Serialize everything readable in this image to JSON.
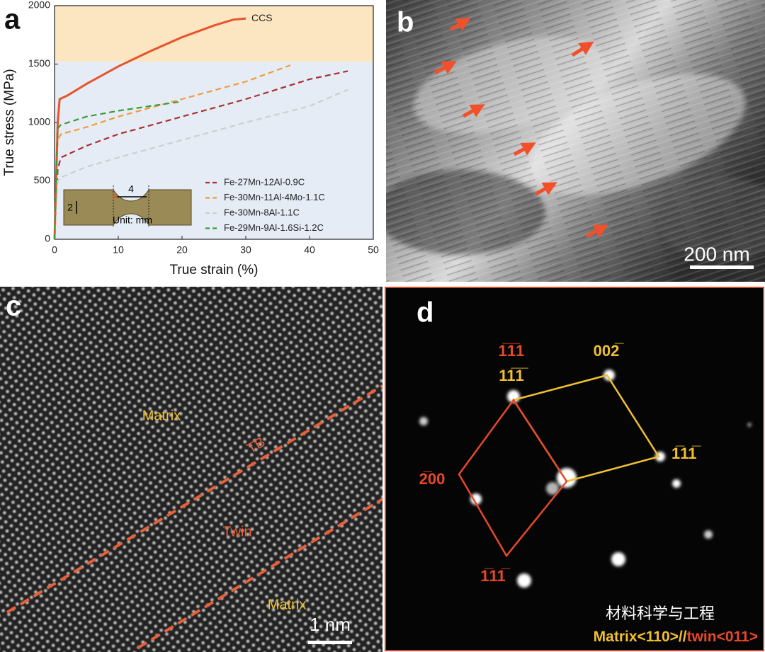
{
  "chart_data": {
    "type": "line",
    "xlabel": "True strain (%)",
    "ylabel": "True stress (MPa)",
    "xlim": [
      0,
      50
    ],
    "ylim": [
      0,
      2000
    ],
    "xticks": [
      0,
      10,
      20,
      30,
      40,
      50
    ],
    "yticks": [
      0,
      500,
      1000,
      1500,
      2000
    ],
    "bands": [
      {
        "from": 1520,
        "to": 2000,
        "color": "#fce6c2"
      },
      {
        "from": 0,
        "to": 1520,
        "color": "#e5ecf6"
      }
    ],
    "legend": "lower right",
    "series": [
      {
        "name": "CCS",
        "color": "#e8532a",
        "style": "solid",
        "x": [
          0,
          0.5,
          0.8,
          2,
          5,
          10,
          15,
          20,
          25,
          28,
          30
        ],
        "values": [
          0,
          1000,
          1200,
          1230,
          1330,
          1480,
          1610,
          1730,
          1830,
          1880,
          1890
        ]
      },
      {
        "name": "Fe-27Mn-12Al-0.9C",
        "color": "#a8302a",
        "style": "dashed",
        "x": [
          0,
          0.5,
          1,
          5,
          10,
          20,
          30,
          40,
          46
        ],
        "values": [
          0,
          600,
          700,
          800,
          900,
          1050,
          1200,
          1370,
          1440
        ]
      },
      {
        "name": "Fe-30Mn-11Al-4Mo-1.1C",
        "color": "#f39a3c",
        "style": "dashed",
        "x": [
          0,
          0.5,
          1,
          5,
          10,
          20,
          30,
          37
        ],
        "values": [
          0,
          850,
          900,
          960,
          1050,
          1200,
          1350,
          1490
        ]
      },
      {
        "name": "Fe-30Mn-8Al-1.1C",
        "color": "#cfcfcf",
        "style": "dashed",
        "x": [
          0,
          0.5,
          1,
          5,
          10,
          20,
          30,
          40,
          46
        ],
        "values": [
          0,
          500,
          530,
          620,
          700,
          850,
          1000,
          1140,
          1280
        ]
      },
      {
        "name": "Fe-29Mn-9Al-1.6Si-1.2C",
        "color": "#3a9a3a",
        "style": "dashed",
        "x": [
          0,
          0.5,
          1,
          5,
          10,
          15,
          20
        ],
        "values": [
          0,
          950,
          980,
          1050,
          1100,
          1140,
          1180
        ]
      }
    ]
  },
  "panel_labels": [
    "a",
    "b",
    "c",
    "d"
  ],
  "inset": {
    "length": "4",
    "width": "2",
    "unit": "Unit: mm"
  },
  "panel_b": {
    "scale_bar": "200 nm"
  },
  "panel_c": {
    "labels": [
      "Matrix",
      "TB",
      "Twin",
      "Matrix"
    ],
    "scale_bar": "1 nm"
  },
  "panel_d": {
    "labels": [
      "1̅1̅1",
      "11̅1̅",
      "002̅",
      "1̅11̅",
      "2̅00",
      "1̅11̅"
    ],
    "watermark": "材料科学与工程",
    "orientation": [
      "Matrix<110>//",
      "twin<011>"
    ]
  }
}
